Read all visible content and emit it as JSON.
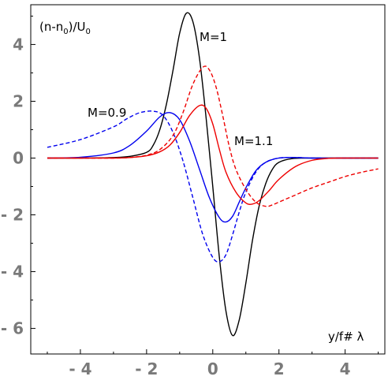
{
  "chart_data": {
    "type": "line",
    "title": "",
    "ylabel": "(n-n0)/U0",
    "ylabel_parts": {
      "a": "(n-n",
      "b": "0",
      "c": ")/U",
      "d": "0"
    },
    "xlabel": "y/f# λ",
    "xlim": [
      -5.5,
      5.2
    ],
    "ylim": [
      -6.9,
      5.4
    ],
    "x_ticks": [
      {
        "value": -4,
        "label": "- 4"
      },
      {
        "value": -2,
        "label": "- 2"
      },
      {
        "value": 0,
        "label": "0"
      },
      {
        "value": 2,
        "label": "2"
      },
      {
        "value": 4,
        "label": "4"
      }
    ],
    "y_ticks": [
      {
        "value": 4,
        "label": "4"
      },
      {
        "value": 2,
        "label": "2"
      },
      {
        "value": 0,
        "label": "0"
      },
      {
        "value": -2,
        "label": "- 2"
      },
      {
        "value": -4,
        "label": "- 4"
      },
      {
        "value": -6,
        "label": "- 6"
      }
    ],
    "grid": false,
    "legend": "none",
    "annotations": [
      {
        "id": "m1",
        "text": "M=1"
      },
      {
        "id": "m09",
        "text": "M=0.9"
      },
      {
        "id": "m11",
        "text": "M=1.1"
      }
    ],
    "series": [
      {
        "id": "m1",
        "color": "#000000",
        "dash": false,
        "x": [
          -5,
          -4,
          -3,
          -2.5,
          -2,
          -1.8,
          -1.6,
          -1.4,
          -1.2,
          -1.0,
          -0.8,
          -0.6,
          -0.4,
          -0.2,
          0,
          0.2,
          0.4,
          0.6,
          0.8,
          1.0,
          1.2,
          1.4,
          1.6,
          1.8,
          2,
          2.4,
          3,
          4,
          5
        ],
        "y": [
          0,
          0,
          0.02,
          0.06,
          0.2,
          0.45,
          1.0,
          1.9,
          3.1,
          4.4,
          5.1,
          4.8,
          3.5,
          1.4,
          -1.0,
          -3.5,
          -5.4,
          -6.25,
          -5.7,
          -4.4,
          -2.9,
          -1.7,
          -0.9,
          -0.4,
          -0.15,
          -0.02,
          0,
          0,
          0
        ]
      },
      {
        "id": "m09",
        "color": "#0000ee",
        "dash": false,
        "x": [
          -5,
          -4,
          -3,
          -2.5,
          -2,
          -1.6,
          -1.3,
          -1.0,
          -0.7,
          -0.4,
          -0.1,
          0.2,
          0.4,
          0.6,
          0.8,
          1.0,
          1.3,
          1.6,
          2,
          2.5,
          3,
          4,
          5
        ],
        "y": [
          0,
          0.03,
          0.18,
          0.45,
          0.95,
          1.45,
          1.6,
          1.35,
          0.6,
          -0.4,
          -1.4,
          -2.1,
          -2.25,
          -2.05,
          -1.55,
          -1.05,
          -0.45,
          -0.15,
          0,
          0.02,
          0,
          0,
          0
        ]
      },
      {
        "id": "m09d",
        "color": "#0000ee",
        "dash": true,
        "x": [
          -5,
          -4,
          -3,
          -2.6,
          -2.2,
          -1.8,
          -1.5,
          -1.2,
          -0.9,
          -0.6,
          -0.3,
          0,
          0.2,
          0.4,
          0.6,
          0.8,
          1.0,
          1.3,
          1.6,
          2,
          2.5,
          3,
          4,
          5
        ],
        "y": [
          0.38,
          0.65,
          1.1,
          1.38,
          1.6,
          1.65,
          1.5,
          0.9,
          -0.1,
          -1.4,
          -2.7,
          -3.5,
          -3.65,
          -3.4,
          -2.7,
          -1.9,
          -1.2,
          -0.5,
          -0.15,
          0,
          0.02,
          0,
          0,
          0
        ]
      },
      {
        "id": "m11",
        "color": "#ee0000",
        "dash": false,
        "x": [
          -5,
          -4,
          -3,
          -2.5,
          -2,
          -1.6,
          -1.3,
          -1.0,
          -0.7,
          -0.4,
          -0.2,
          0,
          0.2,
          0.4,
          0.7,
          1.0,
          1.2,
          1.4,
          1.7,
          2,
          2.5,
          3,
          3.5,
          4,
          5
        ],
        "y": [
          0,
          0,
          0,
          0.02,
          0.08,
          0.22,
          0.45,
          0.9,
          1.5,
          1.85,
          1.75,
          1.2,
          0.3,
          -0.5,
          -1.2,
          -1.58,
          -1.62,
          -1.5,
          -1.15,
          -0.75,
          -0.3,
          -0.08,
          -0.01,
          0,
          0
        ]
      },
      {
        "id": "m11d",
        "color": "#ee0000",
        "dash": true,
        "x": [
          -5,
          -4,
          -3,
          -2.5,
          -2,
          -1.6,
          -1.2,
          -0.9,
          -0.6,
          -0.3,
          -0.1,
          0.1,
          0.3,
          0.5,
          0.7,
          1.0,
          1.3,
          1.6,
          1.8,
          2.1,
          2.5,
          3,
          3.5,
          4,
          4.5,
          5
        ],
        "y": [
          0,
          0,
          0,
          0.02,
          0.1,
          0.3,
          0.8,
          1.6,
          2.6,
          3.2,
          3.1,
          2.5,
          1.5,
          0.4,
          -0.4,
          -1.1,
          -1.55,
          -1.7,
          -1.65,
          -1.5,
          -1.3,
          -1.05,
          -0.85,
          -0.65,
          -0.5,
          -0.38
        ]
      }
    ]
  }
}
